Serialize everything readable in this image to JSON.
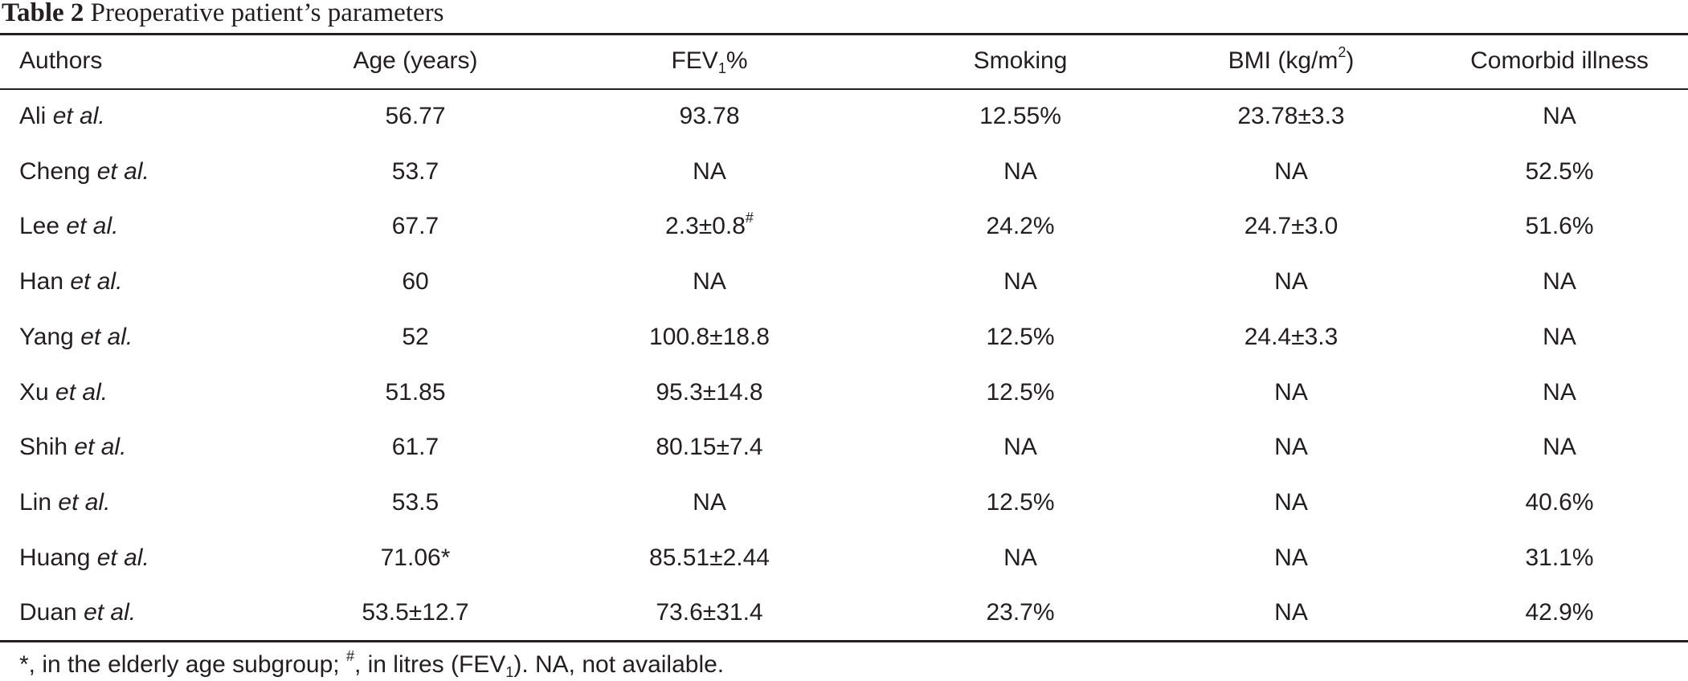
{
  "caption": {
    "label": "Table 2",
    "text": "Preoperative patient’s parameters"
  },
  "table": {
    "headers": {
      "authors": "Authors",
      "age": "Age (years)",
      "fev_main": "FEV",
      "fev_sub": "1",
      "fev_tail": "%",
      "smoking": "Smoking",
      "bmi_main": "BMI (kg/m",
      "bmi_sup": "2",
      "bmi_tail": ")",
      "comorbid": "Comorbid illness"
    },
    "etal": "et al.",
    "rows": [
      {
        "author": "Ali",
        "age": "56.77",
        "fev": "93.78",
        "fev_mark": "",
        "smoking": "12.55%",
        "bmi": "23.78±3.3",
        "comorbid": "NA"
      },
      {
        "author": "Cheng",
        "age": "53.7",
        "fev": "NA",
        "fev_mark": "",
        "smoking": "NA",
        "bmi": "NA",
        "comorbid": "52.5%"
      },
      {
        "author": "Lee",
        "age": "67.7",
        "fev": "2.3±0.8",
        "fev_mark": "#",
        "smoking": "24.2%",
        "bmi": "24.7±3.0",
        "comorbid": "51.6%"
      },
      {
        "author": "Han",
        "age": "60",
        "fev": "NA",
        "fev_mark": "",
        "smoking": "NA",
        "bmi": "NA",
        "comorbid": "NA"
      },
      {
        "author": "Yang",
        "age": "52",
        "fev": "100.8±18.8",
        "fev_mark": "",
        "smoking": "12.5%",
        "bmi": "24.4±3.3",
        "comorbid": "NA"
      },
      {
        "author": "Xu",
        "age": "51.85",
        "fev": "95.3±14.8",
        "fev_mark": "",
        "smoking": "12.5%",
        "bmi": "NA",
        "comorbid": "NA"
      },
      {
        "author": "Shih",
        "age": "61.7",
        "fev": "80.15±7.4",
        "fev_mark": "",
        "smoking": "NA",
        "bmi": "NA",
        "comorbid": "NA"
      },
      {
        "author": "Lin",
        "age": "53.5",
        "fev": "NA",
        "fev_mark": "",
        "smoking": "12.5%",
        "bmi": "NA",
        "comorbid": "40.6%"
      },
      {
        "author": "Huang",
        "age": "71.06*",
        "fev": "85.51±2.44",
        "fev_mark": "",
        "smoking": "NA",
        "bmi": "NA",
        "comorbid": "31.1%"
      },
      {
        "author": "Duan",
        "age": "53.5±12.7",
        "fev": "73.6±31.4",
        "fev_mark": "",
        "smoking": "23.7%",
        "bmi": "NA",
        "comorbid": "42.9%"
      }
    ]
  },
  "footnote": {
    "p1": "*, in the elderly age subgroup; ",
    "sup": "#",
    "p2": ", in litres (FEV",
    "sub": "1",
    "p3": "). NA, not available."
  }
}
